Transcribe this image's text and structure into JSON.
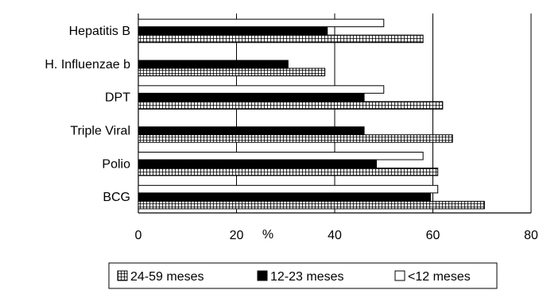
{
  "chart_data": {
    "type": "bar",
    "orientation": "horizontal",
    "categories": [
      "Hepatitis B",
      "H. Influenzae b",
      "DPT",
      "Triple Viral",
      "Polio",
      "BCG"
    ],
    "series": [
      {
        "name": "<12 meses",
        "values": [
          50,
          0,
          50,
          0,
          58,
          61
        ],
        "color": "#ffffff",
        "pattern": "none"
      },
      {
        "name": "12-23 meses",
        "values": [
          38.5,
          30.5,
          46,
          46,
          48.5,
          59.5
        ],
        "color": "#000000",
        "pattern": "solid"
      },
      {
        "name": "24-59 meses",
        "values": [
          58,
          38,
          62,
          64,
          61,
          70.5
        ],
        "color": "#ffffff",
        "pattern": "grid-hatch"
      }
    ],
    "xlabel": "%",
    "xlim": [
      0,
      80
    ],
    "xticks": [
      0,
      20,
      40,
      60,
      80
    ],
    "grid": true,
    "legend": {
      "placement": "bottom",
      "order": [
        "24-59 meses",
        "12-23 meses",
        "<12 meses"
      ]
    }
  }
}
